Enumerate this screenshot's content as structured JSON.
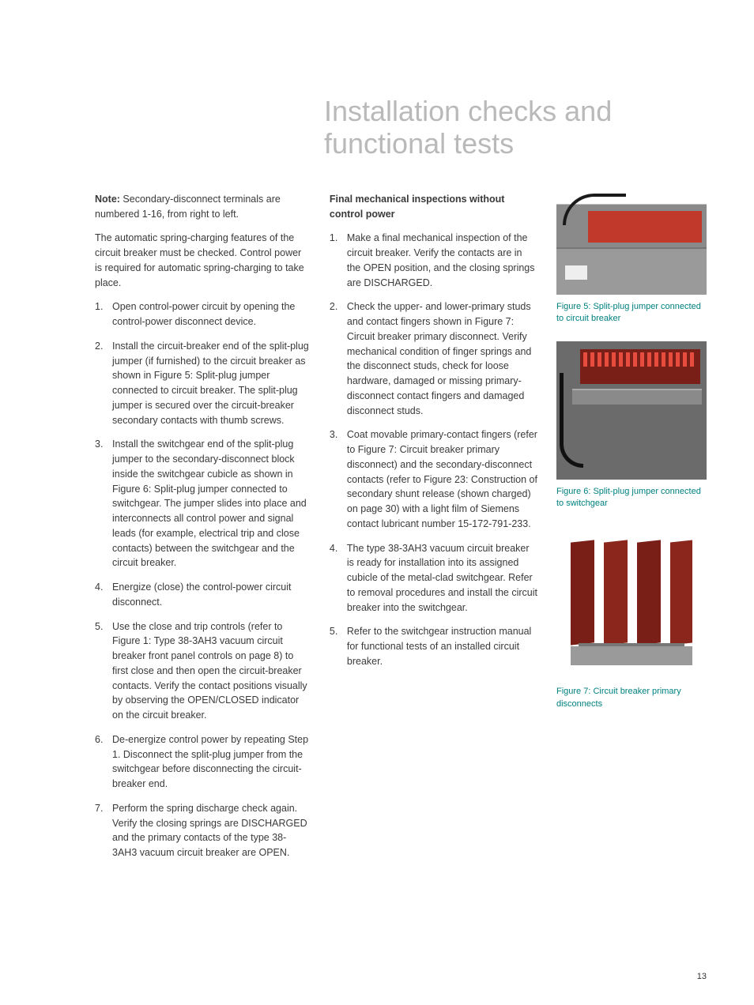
{
  "title": "Installation checks and functional tests",
  "page_number": "13",
  "colors": {
    "title": "#b9b9b9",
    "body_text": "#3a3a3a",
    "caption": "#008080",
    "accent_red": "#7a1f17",
    "background": "#ffffff"
  },
  "typography": {
    "title_fontsize_pt": 27,
    "body_fontsize_pt": 9.5,
    "caption_fontsize_pt": 8,
    "title_weight": "400",
    "body_family": "Arial"
  },
  "left_column": {
    "note_label": "Note:",
    "note_text": " Secondary-disconnect terminals are numbered 1-16, from right to left.",
    "intro": "The automatic spring-charging features of the circuit breaker must be checked. Control power is required for automatic spring-charging to take place.",
    "steps": [
      "Open control-power circuit by opening the control-power disconnect device.",
      "Install the circuit-breaker end of the split-plug jumper (if furnished) to the circuit breaker as shown in Figure 5: Split-plug jumper connected to circuit breaker. The split-plug jumper is secured over the circuit-breaker secondary contacts with thumb screws.",
      "Install the switchgear end of the split-plug jumper to the secondary-disconnect block inside the switchgear cubicle as shown in Figure 6: Split-plug jumper connected to switchgear. The jumper slides into place and interconnects all control power and signal leads (for example, electrical trip and close contacts) between the switchgear and the circuit breaker.",
      "Energize (close) the control-power circuit disconnect.",
      "Use the close and trip controls (refer to Figure 1: Type 38-3AH3 vacuum circuit breaker front panel controls on page 8) to first close and then open the circuit-breaker contacts. Verify the contact positions visually by observing the OPEN/CLOSED indicator on the circuit breaker.",
      "De-energize control power by repeating Step 1. Disconnect the split-plug jumper from the switchgear before disconnecting the circuit-breaker end.",
      "Perform the spring discharge check again. Verify the closing springs are DISCHARGED and the primary contacts of the type 38-3AH3 vacuum circuit breaker are OPEN."
    ]
  },
  "mid_column": {
    "heading": "Final mechanical inspections without control power",
    "steps": [
      "Make a final mechanical inspection of the circuit breaker. Verify the contacts are in the OPEN position, and the closing springs are DISCHARGED.",
      "Check the upper- and lower-primary studs and contact fingers shown in Figure 7: Circuit breaker primary disconnect. Verify mechanical condition of finger springs and the disconnect studs, check for loose hardware, damaged or missing primary-disconnect contact fingers and damaged disconnect studs.",
      "Coat movable primary-contact fingers (refer to Figure 7: Circuit breaker primary disconnect) and the secondary-disconnect contacts (refer to Figure 23: Construction of secondary shunt release (shown charged) on page 30) with a light film of Siemens contact lubricant number 15-172-791-233.",
      "The type 38-3AH3 vacuum circuit breaker is ready for installation into its assigned cubicle of the metal-clad switchgear. Refer to removal procedures and install the circuit breaker into the switchgear.",
      "Refer to the switchgear instruction manual for functional tests of an installed circuit breaker."
    ]
  },
  "figures": [
    {
      "id": "fig5",
      "caption": "Figure 5: Split-plug jumper connected to circuit breaker"
    },
    {
      "id": "fig6",
      "caption": "Figure 6: Split-plug jumper connected to switchgear"
    },
    {
      "id": "fig7",
      "caption": "Figure 7: Circuit breaker primary disconnects"
    }
  ]
}
